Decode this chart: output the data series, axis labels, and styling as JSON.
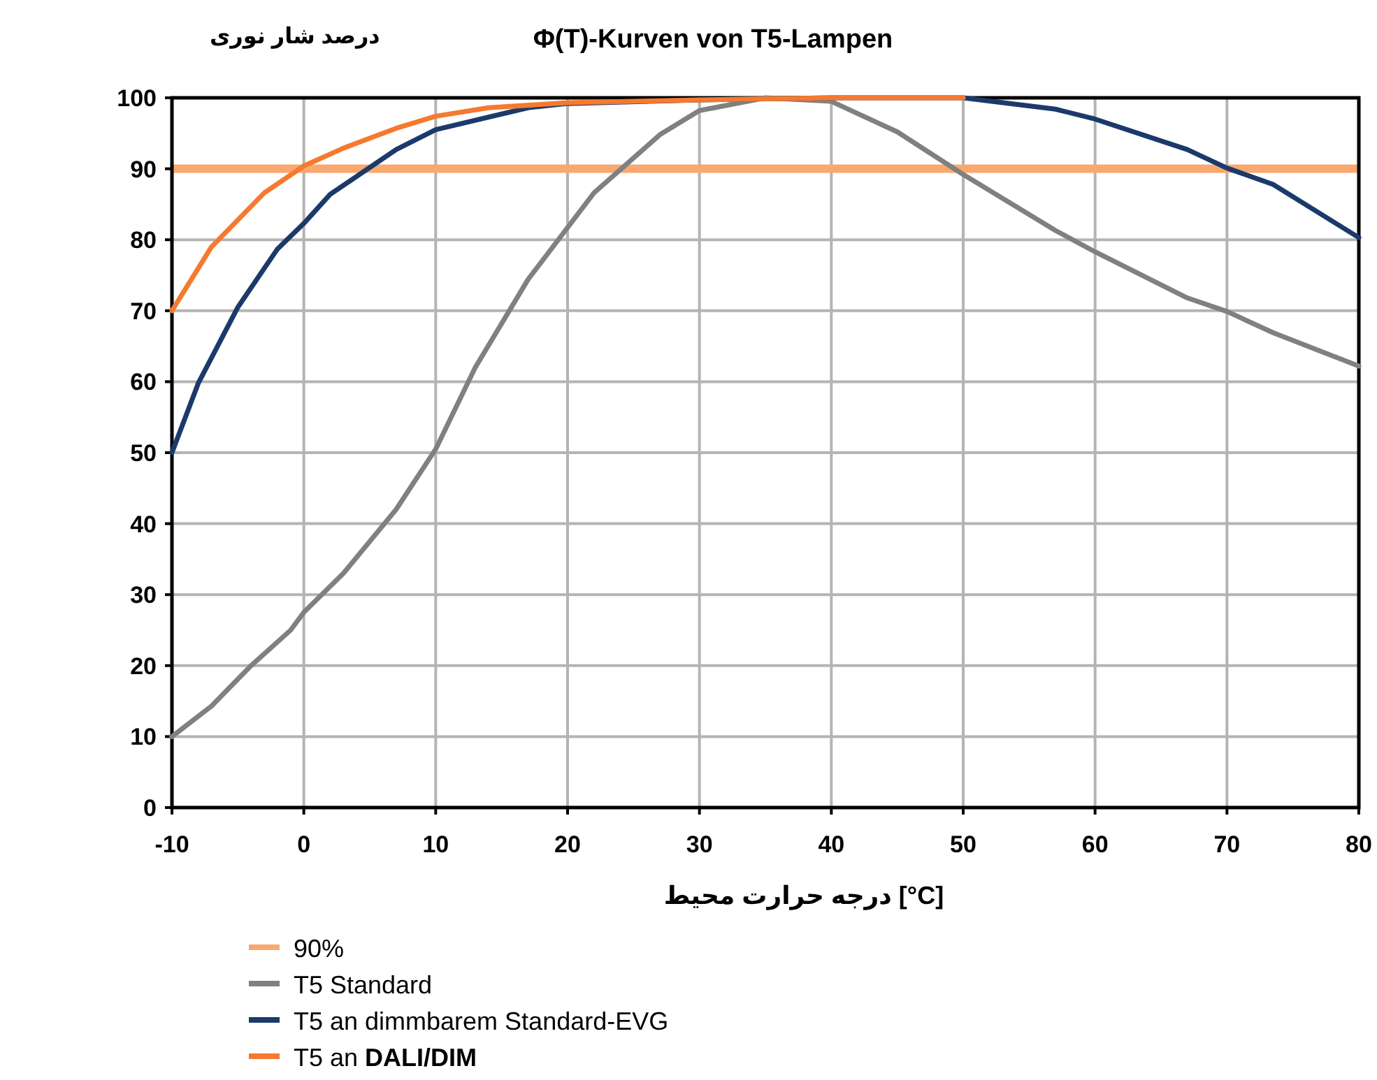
{
  "chart_data": {
    "type": "line",
    "title": "Φ(T)-Kurven von T5-Lampen",
    "xlabel": "درجه حرارت محیط [°C]",
    "ylabel": "درصد شار نوری",
    "xlim": [
      -10,
      80
    ],
    "ylim": [
      0,
      100
    ],
    "xticks": [
      -10,
      0,
      10,
      20,
      30,
      40,
      50,
      60,
      70,
      80
    ],
    "yticks": [
      0,
      10,
      20,
      30,
      40,
      50,
      60,
      70,
      80,
      90,
      100
    ],
    "grid": true,
    "legend": "bottom",
    "ref_lines": [
      {
        "axis": "y",
        "value": 90,
        "label": "90%",
        "color": "#f9a870"
      }
    ],
    "series": [
      {
        "name": "T5 Standard",
        "color": "#808080",
        "x": [
          -10,
          -7,
          -4,
          -1,
          0,
          3,
          7,
          10,
          13,
          17,
          22,
          27,
          30,
          35,
          40,
          45,
          50,
          57,
          60,
          67,
          70,
          73.5,
          80
        ],
        "values": [
          10,
          14.3,
          20,
          25,
          27.5,
          33,
          42,
          50.5,
          62,
          74.4,
          86.6,
          94.8,
          98.2,
          100,
          99.5,
          95.2,
          89.2,
          81.3,
          78.3,
          71.8,
          69.9,
          66.9,
          62.2
        ]
      },
      {
        "name": "T5 an dimmbarem Standard-EVG",
        "color": "#1b3a6b",
        "x": [
          -10,
          -8,
          -5,
          -2,
          0,
          2,
          7,
          10,
          17,
          20,
          30,
          40,
          50,
          57,
          60,
          67,
          70,
          73.5,
          80
        ],
        "values": [
          50,
          59.8,
          70.5,
          78.7,
          82.3,
          86.4,
          92.7,
          95.5,
          98.6,
          99.2,
          99.7,
          100,
          100,
          98.4,
          97,
          92.7,
          90.1,
          87.8,
          80.3
        ]
      },
      {
        "name": "T5 an **DALI/DIM**",
        "color": "#f47a30",
        "x": [
          -10,
          -7,
          -3,
          0,
          3,
          7,
          10,
          14,
          20,
          30,
          40,
          50
        ],
        "values": [
          70,
          79,
          86.6,
          90.4,
          92.9,
          95.7,
          97.4,
          98.6,
          99.3,
          99.7,
          100,
          100
        ]
      }
    ]
  }
}
